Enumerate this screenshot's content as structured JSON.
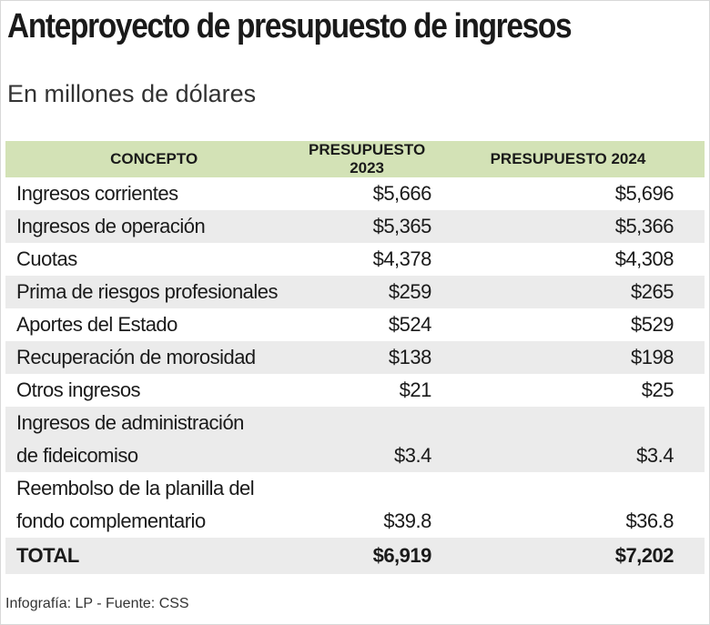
{
  "header": {
    "title": "Anteproyecto de presupuesto de ingresos",
    "subtitle": "En millones de dólares"
  },
  "table": {
    "columns": [
      "CONCEPTO",
      "PRESUPUESTO 2023",
      "PRESUPUESTO 2024"
    ],
    "rows": [
      {
        "concept": [
          "Ingresos corrientes"
        ],
        "y2023": "$5,666",
        "y2024": "$5,696"
      },
      {
        "concept": [
          "Ingresos de operación"
        ],
        "y2023": "$5,365",
        "y2024": "$5,366"
      },
      {
        "concept": [
          "Cuotas"
        ],
        "y2023": "$4,378",
        "y2024": "$4,308"
      },
      {
        "concept": [
          "Prima de riesgos profesionales"
        ],
        "y2023": "$259",
        "y2024": "$265"
      },
      {
        "concept": [
          "Aportes del Estado"
        ],
        "y2023": "$524",
        "y2024": "$529"
      },
      {
        "concept": [
          "Recuperación de morosidad"
        ],
        "y2023": "$138",
        "y2024": "$198"
      },
      {
        "concept": [
          "Otros ingresos"
        ],
        "y2023": "$21",
        "y2024": "$25"
      },
      {
        "concept": [
          "Ingresos de administración",
          "de fideicomiso"
        ],
        "y2023": "$3.4",
        "y2024": "$3.4"
      },
      {
        "concept": [
          "Reembolso de la planilla del",
          "fondo complementario"
        ],
        "y2023": "$39.8",
        "y2024": "$36.8"
      }
    ],
    "total": {
      "concept": "TOTAL",
      "y2023": "$6,919",
      "y2024": "$7,202"
    }
  },
  "footer": {
    "source": "Infografía: LP - Fuente: CSS"
  }
}
